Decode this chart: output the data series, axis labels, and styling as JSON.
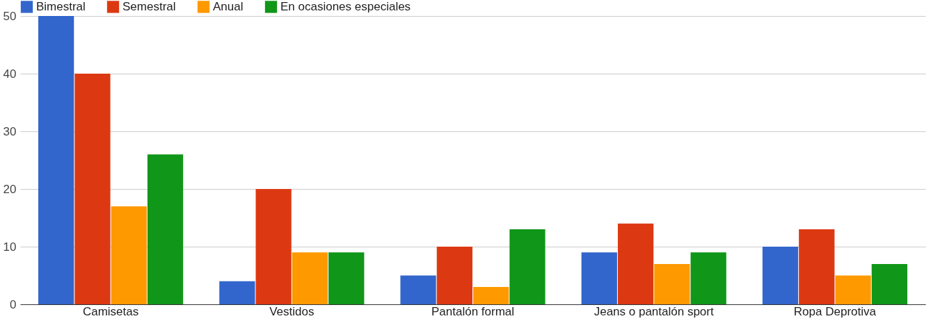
{
  "chart_data": {
    "type": "bar",
    "categories": [
      "Camisetas",
      "Vestidos",
      "Pantalón formal",
      "Jeans o pantalón sport",
      "Ropa Deprotiva"
    ],
    "series": [
      {
        "name": "Bimestral",
        "color": "#3366cc",
        "values": [
          50,
          4,
          5,
          9,
          10
        ]
      },
      {
        "name": "Semestral",
        "color": "#dc3912",
        "values": [
          40,
          20,
          10,
          14,
          13
        ]
      },
      {
        "name": "Anual",
        "color": "#ff9900",
        "values": [
          17,
          9,
          3,
          7,
          5
        ]
      },
      {
        "name": "En ocasiones especiales",
        "color": "#109618",
        "values": [
          26,
          9,
          13,
          9,
          7
        ]
      }
    ],
    "ylim": [
      0,
      50
    ],
    "yticks": [
      0,
      10,
      20,
      30,
      40,
      50
    ],
    "grid": "y",
    "legend": "top left"
  }
}
